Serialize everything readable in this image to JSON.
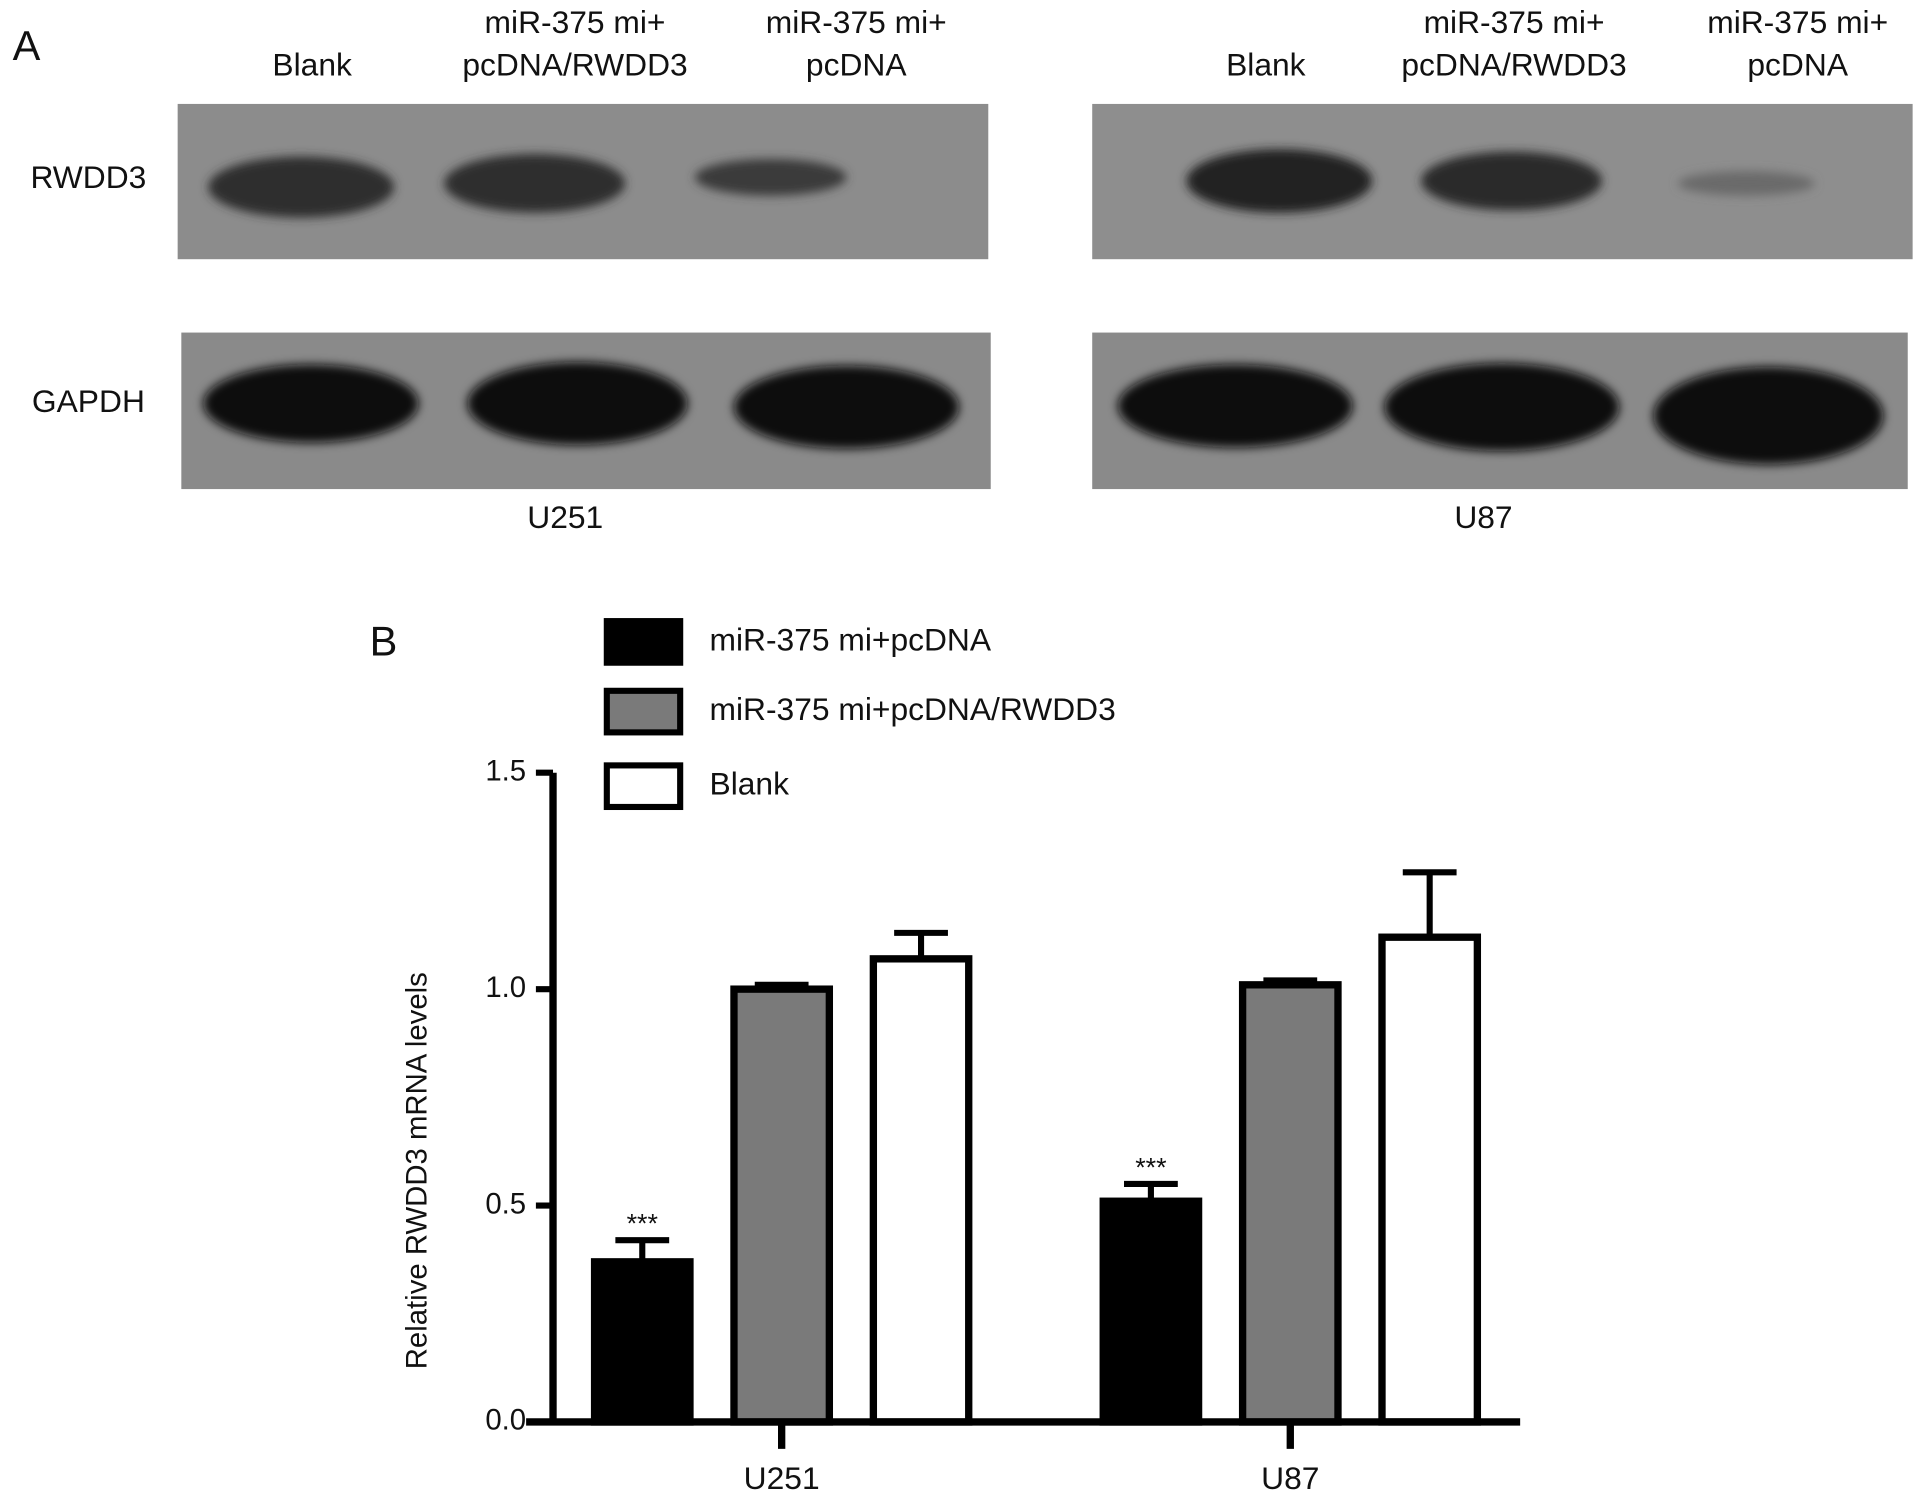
{
  "panel_a": {
    "label": "A",
    "rows": [
      "RWDD3",
      "GAPDH"
    ],
    "blots": [
      {
        "cell_line": "U251",
        "lanes": [
          [
            "Blank"
          ],
          [
            "miR-375 mi+",
            "pcDNA/RWDD3"
          ],
          [
            "miR-375 mi+",
            "pcDNA"
          ]
        ]
      },
      {
        "cell_line": "U87",
        "lanes": [
          [
            "Blank"
          ],
          [
            "miR-375 mi+",
            "pcDNA/RWDD3"
          ],
          [
            "miR-375 mi+",
            "pcDNA"
          ]
        ]
      }
    ]
  },
  "chart_data": {
    "type": "bar",
    "panel_label": "B",
    "y_label": "Relative RWDD3 mRNA levels",
    "categories": [
      "U251",
      "U87"
    ],
    "series": [
      {
        "name": "miR-375 mi+pcDNA",
        "color": "#000000",
        "values": [
          0.37,
          0.51
        ],
        "errors": [
          0.05,
          0.04
        ],
        "annotations": [
          "***",
          "***"
        ]
      },
      {
        "name": "miR-375 mi+pcDNA/RWDD3",
        "color": "#7a7a7a",
        "values": [
          1.0,
          1.01
        ],
        "errors": [
          0.01,
          0.01
        ]
      },
      {
        "name": "Blank",
        "color": "#ffffff",
        "values": [
          1.07,
          1.12
        ],
        "errors": [
          0.06,
          0.15
        ]
      }
    ],
    "ylim": [
      0,
      1.5
    ],
    "yticks": [
      {
        "value": 0,
        "label": "0.0"
      },
      {
        "value": 0.5,
        "label": "0.5"
      },
      {
        "value": 1,
        "label": "1.0"
      },
      {
        "value": 1.5,
        "label": "1.5"
      }
    ]
  }
}
